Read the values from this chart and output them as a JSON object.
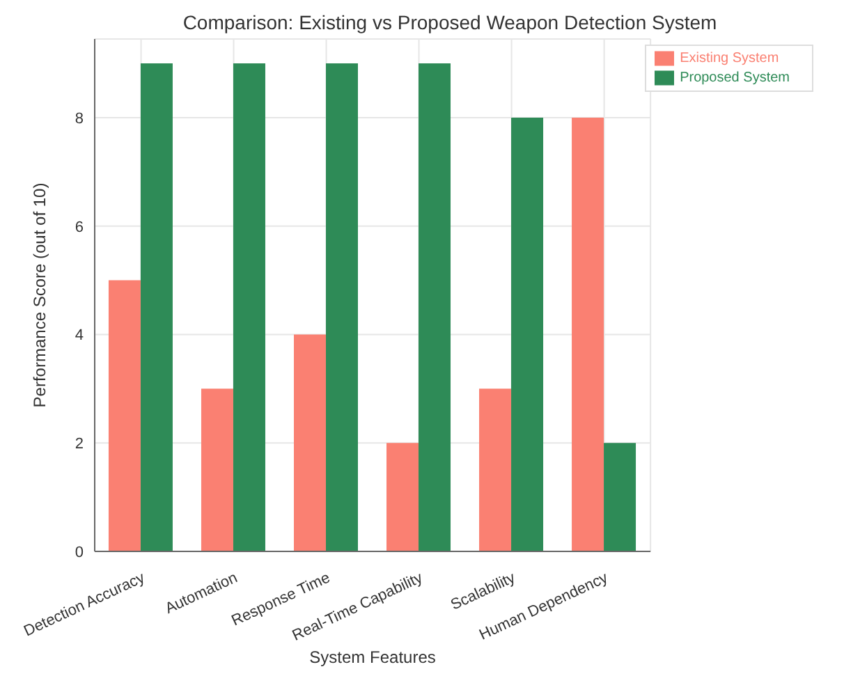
{
  "chart_data": {
    "type": "bar",
    "title": "Comparison: Existing vs Proposed Weapon Detection System",
    "xlabel": "System Features",
    "ylabel": "Performance Score (out of 10)",
    "categories": [
      "Detection Accuracy",
      "Automation",
      "Response Time",
      "Real-Time Capability",
      "Scalability",
      "Human Dependency"
    ],
    "series": [
      {
        "name": "Existing System",
        "color": "#fa8072",
        "values": [
          5,
          3,
          4,
          2,
          3,
          8
        ]
      },
      {
        "name": "Proposed System",
        "color": "#2e8b57",
        "values": [
          9,
          9,
          9,
          9,
          8,
          2
        ]
      }
    ],
    "ylim": [
      0,
      9.45
    ],
    "yticks": [
      0,
      2,
      4,
      6,
      8
    ],
    "grid": true,
    "legend": "top right"
  }
}
